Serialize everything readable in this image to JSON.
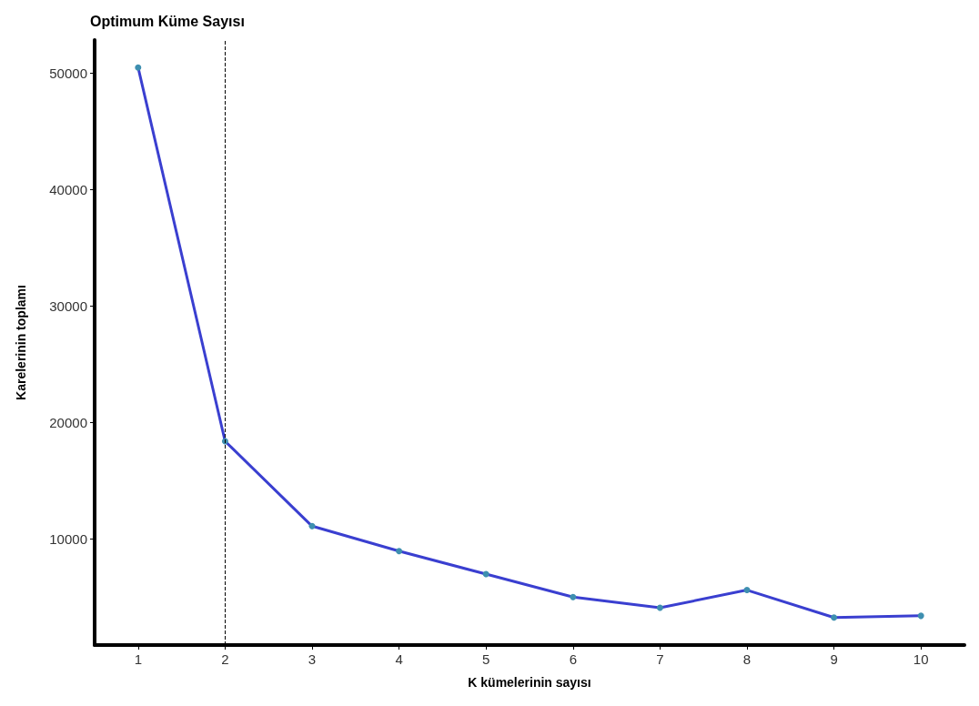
{
  "chart_data": {
    "type": "line",
    "title": "Optimum Küme Sayısı",
    "xlabel": "K kümelerinin sayısı",
    "ylabel": "Karelerinin toplamı",
    "categories": [
      "1",
      "2",
      "3",
      "4",
      "5",
      "6",
      "7",
      "8",
      "9",
      "10"
    ],
    "series": [
      {
        "color": "#3a3fd0",
        "values": [
          50460,
          18370,
          11080,
          8940,
          6960,
          4990,
          4070,
          5590,
          3230,
          3380
        ]
      }
    ],
    "ylim": [
      870,
      52820
    ],
    "yticks": [
      10000,
      20000,
      30000,
      40000,
      50000
    ],
    "ref_lines": [
      {
        "axis": "x",
        "value": "2",
        "color": "#000000",
        "line_style": "dashed"
      }
    ],
    "marker": "circle",
    "grid": false
  }
}
